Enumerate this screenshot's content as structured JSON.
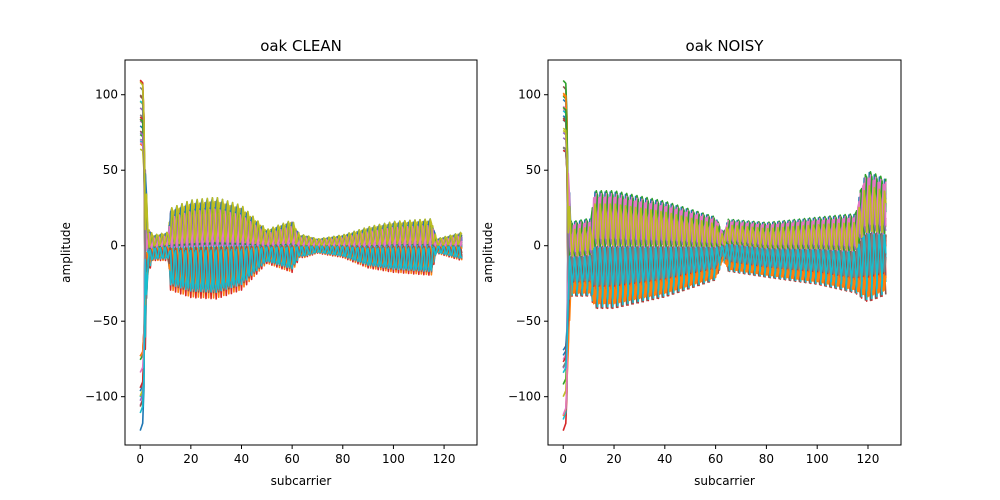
{
  "chart_data": [
    {
      "type": "line",
      "title": "oak CLEAN",
      "xlabel": "subcarrier",
      "ylabel": "amplitude",
      "xlim": [
        -6,
        133
      ],
      "ylim": [
        -132,
        123
      ],
      "xticks": [
        0,
        20,
        40,
        60,
        80,
        100,
        120
      ],
      "yticks": [
        -100,
        -50,
        0,
        50,
        100
      ],
      "x": [
        0,
        127
      ],
      "series_count": "many (one trace per packet, default matplotlib color cycle)",
      "envelope": {
        "x": [
          0,
          1,
          3,
          5,
          11,
          12,
          20,
          30,
          40,
          50,
          60,
          63,
          65,
          70,
          80,
          90,
          100,
          115,
          117,
          127
        ],
        "upper": [
          112,
          110,
          15,
          8,
          10,
          28,
          34,
          36,
          30,
          12,
          19,
          8,
          8,
          5,
          8,
          14,
          18,
          20,
          5,
          10
        ],
        "lower": [
          -125,
          -120,
          -20,
          -10,
          -10,
          -30,
          -35,
          -36,
          -30,
          -12,
          -18,
          -8,
          -8,
          -5,
          -8,
          -15,
          -18,
          -20,
          -5,
          -10
        ]
      }
    },
    {
      "type": "line",
      "title": "oak NOISY",
      "xlabel": "subcarrier",
      "ylabel": "amplitude",
      "xlim": [
        -6,
        133
      ],
      "ylim": [
        -132,
        123
      ],
      "xticks": [
        0,
        20,
        40,
        60,
        80,
        100,
        120
      ],
      "yticks": [
        -100,
        -50,
        0,
        50,
        100
      ],
      "x": [
        0,
        127
      ],
      "series_count": "many (one trace per packet, default matplotlib color cycle)",
      "envelope": {
        "x": [
          0,
          1,
          3,
          5,
          11,
          12,
          20,
          40,
          60,
          63,
          65,
          80,
          100,
          115,
          118,
          120,
          127
        ],
        "upper": [
          112,
          110,
          20,
          20,
          22,
          42,
          42,
          34,
          22,
          10,
          20,
          18,
          22,
          25,
          50,
          56,
          50
        ],
        "lower": [
          -125,
          -120,
          -35,
          -35,
          -35,
          -44,
          -44,
          -36,
          -24,
          -10,
          -18,
          -22,
          -27,
          -33,
          -38,
          -40,
          -35
        ]
      }
    }
  ],
  "colors": [
    "#1f77b4",
    "#ff7f0e",
    "#2ca02c",
    "#d62728",
    "#9467bd",
    "#8c564b",
    "#e377c2",
    "#7f7f7f",
    "#bcbd22",
    "#17becf"
  ]
}
